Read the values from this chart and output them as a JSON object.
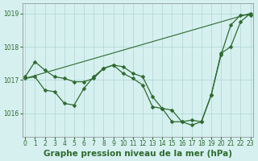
{
  "title": "Graphe pression niveau de la mer (hPa)",
  "series": [
    {
      "x": [
        0,
        1,
        2,
        3,
        4,
        5,
        6,
        7,
        8,
        9,
        10,
        11,
        12,
        13,
        14,
        15,
        16,
        17,
        18,
        19,
        20,
        21,
        22,
        23
      ],
      "y": [
        1017.1,
        1017.55,
        1017.3,
        1017.1,
        1017.05,
        1016.95,
        1016.95,
        1017.05,
        1017.35,
        1017.45,
        1017.4,
        1017.2,
        1017.1,
        1016.5,
        1016.15,
        1016.1,
        1015.75,
        1015.8,
        1015.75,
        1016.55,
        1017.75,
        1018.65,
        1018.95,
        1018.95
      ]
    },
    {
      "x": [
        0,
        1,
        2,
        3,
        4,
        5,
        6,
        7,
        8,
        9,
        10,
        11,
        12,
        13,
        14,
        15,
        16,
        17,
        18,
        19,
        20,
        21,
        22,
        23
      ],
      "y": [
        1017.05,
        1017.1,
        1016.7,
        1016.65,
        1016.3,
        1016.25,
        1016.75,
        1017.1,
        1017.35,
        1017.45,
        1017.2,
        1017.05,
        1016.85,
        1016.2,
        1016.15,
        1015.75,
        1015.75,
        1015.65,
        1015.75,
        1016.55,
        1017.8,
        1018.0,
        1018.75,
        1019.0
      ]
    },
    {
      "x": [
        0,
        23
      ],
      "y": [
        1017.05,
        1019.0
      ]
    }
  ],
  "ylim": [
    1015.3,
    1019.3
  ],
  "yticks": [
    1016,
    1017,
    1018,
    1019
  ],
  "xticks": [
    0,
    1,
    2,
    3,
    4,
    5,
    6,
    7,
    8,
    9,
    10,
    11,
    12,
    13,
    14,
    15,
    16,
    17,
    18,
    19,
    20,
    21,
    22,
    23
  ],
  "line_color": "#2d6a2d",
  "marker": "D",
  "marker_size": 2.5,
  "background_color": "#d6f0f0",
  "grid_color": "#aed4d4",
  "tick_label_color": "#2d6a2d",
  "title_color": "#2d6a2d",
  "title_fontsize": 7.5,
  "tick_fontsize": 5.5
}
